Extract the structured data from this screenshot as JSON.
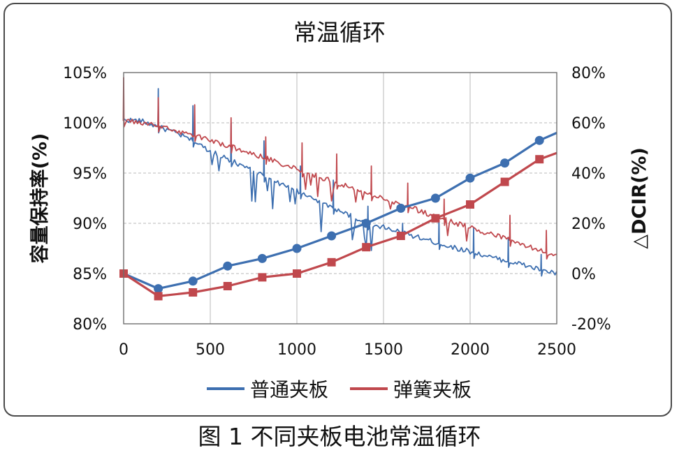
{
  "chart_data": {
    "type": "line",
    "title": "常温循环",
    "xlabel": "",
    "ylabel": "容量保持率(%)",
    "y2label": "△DCIR(%)",
    "xlim": [
      0,
      2500
    ],
    "ylim": [
      80,
      105
    ],
    "y2lim": [
      -20,
      80
    ],
    "x_ticks": [
      "0",
      "500",
      "1000",
      "1500",
      "2000",
      "2500"
    ],
    "y_ticks": [
      "80%",
      "85%",
      "90%",
      "95%",
      "100%",
      "105%"
    ],
    "y2_ticks": [
      "-20%",
      "0%",
      "20%",
      "40%",
      "60%",
      "80%"
    ],
    "grid": true,
    "legend": "bottom",
    "colors": {
      "blue": "#3d6fb0",
      "red": "#c0484d",
      "grid": "#b8b8b8",
      "axis": "#6e6e6e"
    },
    "series": [
      {
        "name": "普通夹板",
        "color": "#3d6fb0",
        "axis": "left",
        "marker": "none",
        "x": [
          0,
          100,
          200,
          300,
          400,
          500,
          600,
          700,
          800,
          900,
          1000,
          1100,
          1200,
          1300,
          1400,
          1500,
          1600,
          1700,
          1800,
          1900,
          2000,
          2100,
          2200,
          2300,
          2400,
          2500
        ],
        "values": [
          100.3,
          100.2,
          99.6,
          99.0,
          98.2,
          97.2,
          96.4,
          95.6,
          94.8,
          94.0,
          93.2,
          92.4,
          91.6,
          90.8,
          90.0,
          89.6,
          89.1,
          88.6,
          88.1,
          87.6,
          87.2,
          86.7,
          86.3,
          85.9,
          85.4,
          85.0
        ],
        "spikes": [
          {
            "x": 200,
            "value": 103.4
          },
          {
            "x": 400,
            "value": 101.7
          },
          {
            "x": 620,
            "value": 100.0
          },
          {
            "x": 810,
            "value": 98.2
          },
          {
            "x": 1020,
            "value": 95.7
          },
          {
            "x": 1210,
            "value": 94.3
          },
          {
            "x": 1410,
            "value": 91.7
          },
          {
            "x": 1610,
            "value": 90.0
          },
          {
            "x": 1820,
            "value": 90.6
          },
          {
            "x": 2020,
            "value": 89.6
          },
          {
            "x": 2220,
            "value": 88.6
          },
          {
            "x": 2410,
            "value": 86.9
          }
        ]
      },
      {
        "name": "弹簧夹板",
        "color": "#c0484d",
        "axis": "left",
        "marker": "none",
        "x": [
          0,
          100,
          200,
          300,
          400,
          500,
          600,
          700,
          800,
          900,
          1000,
          1100,
          1200,
          1300,
          1400,
          1500,
          1600,
          1700,
          1800,
          1900,
          2000,
          2100,
          2200,
          2300,
          2400,
          2500
        ],
        "values": [
          100.2,
          100.0,
          99.7,
          99.2,
          98.8,
          98.3,
          97.7,
          97.2,
          96.6,
          96.0,
          95.4,
          94.8,
          94.2,
          93.6,
          93.0,
          92.5,
          91.9,
          91.3,
          90.7,
          90.1,
          89.6,
          89.0,
          88.5,
          87.9,
          87.3,
          86.7
        ],
        "spikes": [
          {
            "x": 0,
            "value": 104.5
          },
          {
            "x": 200,
            "value": 102.5
          },
          {
            "x": 410,
            "value": 101.8
          },
          {
            "x": 620,
            "value": 100.5
          },
          {
            "x": 820,
            "value": 98.6
          },
          {
            "x": 1030,
            "value": 98.0
          },
          {
            "x": 1230,
            "value": 96.9
          },
          {
            "x": 1430,
            "value": 95.7
          },
          {
            "x": 1640,
            "value": 94.0
          },
          {
            "x": 1850,
            "value": 92.4
          },
          {
            "x": 2230,
            "value": 90.8
          },
          {
            "x": 2440,
            "value": 89.3
          }
        ]
      },
      {
        "name": "普通夹板",
        "color": "#3d6fb0",
        "axis": "right",
        "marker": "circle",
        "x": [
          0,
          200,
          400,
          600,
          800,
          1000,
          1200,
          1400,
          1600,
          1800,
          2000,
          2200,
          2400,
          2500
        ],
        "values": [
          0,
          -6,
          -3,
          3,
          6,
          10,
          15,
          20,
          26,
          30,
          38,
          44,
          53,
          56
        ],
        "marker_x": [
          200,
          400,
          600,
          800,
          1000,
          1200,
          1400,
          1600,
          1800,
          2000,
          2200,
          2400
        ]
      },
      {
        "name": "弹簧夹板",
        "color": "#c0484d",
        "axis": "right",
        "marker": "square",
        "x": [
          0,
          200,
          400,
          600,
          800,
          1000,
          1200,
          1400,
          1600,
          1800,
          2000,
          2200,
          2400,
          2500
        ],
        "values": [
          0,
          -9,
          -7.5,
          -5,
          -1.5,
          0,
          4.5,
          10.5,
          15,
          22,
          27.5,
          36.5,
          45.5,
          48
        ],
        "marker_x": [
          0,
          200,
          400,
          600,
          800,
          1000,
          1200,
          1400,
          1600,
          1800,
          2000,
          2200,
          2400
        ]
      }
    ]
  },
  "caption": "图 1    不同夹板电池常温循环"
}
